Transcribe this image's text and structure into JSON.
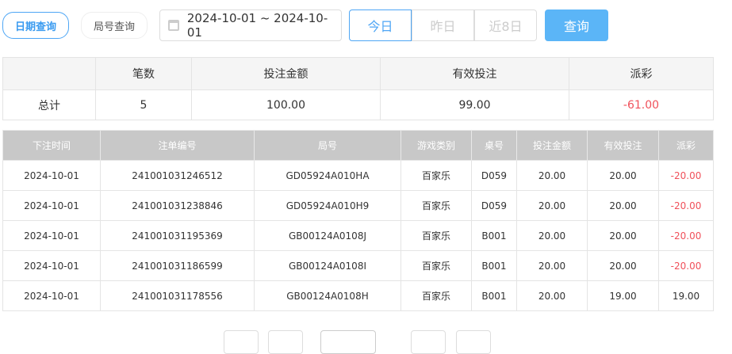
{
  "tabs": [
    "日期查询",
    "局号查询"
  ],
  "date_range": "2024-10-01 ~ 2024-10-01",
  "quick": [
    "今日",
    "昨日",
    "近8日"
  ],
  "query_label": "查询",
  "summary": {
    "headers": [
      "",
      "笔数",
      "投注金额",
      "有效投注",
      "派彩"
    ],
    "row": [
      "总计",
      "5",
      "100.00",
      "99.00",
      "-61.00"
    ]
  },
  "detail": {
    "headers": [
      "下注时间",
      "注单编号",
      "局号",
      "游戏类别",
      "桌号",
      "投注金额",
      "有效投注",
      "派彩"
    ],
    "rows": [
      [
        "2024-10-01",
        "241001031246512",
        "GD05924A010HA",
        "百家乐",
        "D059",
        "20.00",
        "20.00",
        "-20.00"
      ],
      [
        "2024-10-01",
        "241001031238846",
        "GD05924A010H9",
        "百家乐",
        "D059",
        "20.00",
        "20.00",
        "-20.00"
      ],
      [
        "2024-10-01",
        "241001031195369",
        "GB00124A0108J",
        "百家乐",
        "B001",
        "20.00",
        "20.00",
        "-20.00"
      ],
      [
        "2024-10-01",
        "241001031186599",
        "GB00124A0108I",
        "百家乐",
        "B001",
        "20.00",
        "20.00",
        "-20.00"
      ],
      [
        "2024-10-01",
        "241001031178556",
        "GB00124A0108H",
        "百家乐",
        "B001",
        "20.00",
        "19.00",
        "19.00"
      ]
    ]
  },
  "colors": {
    "accent": "#4ea6f5",
    "negative": "#f0505a"
  }
}
